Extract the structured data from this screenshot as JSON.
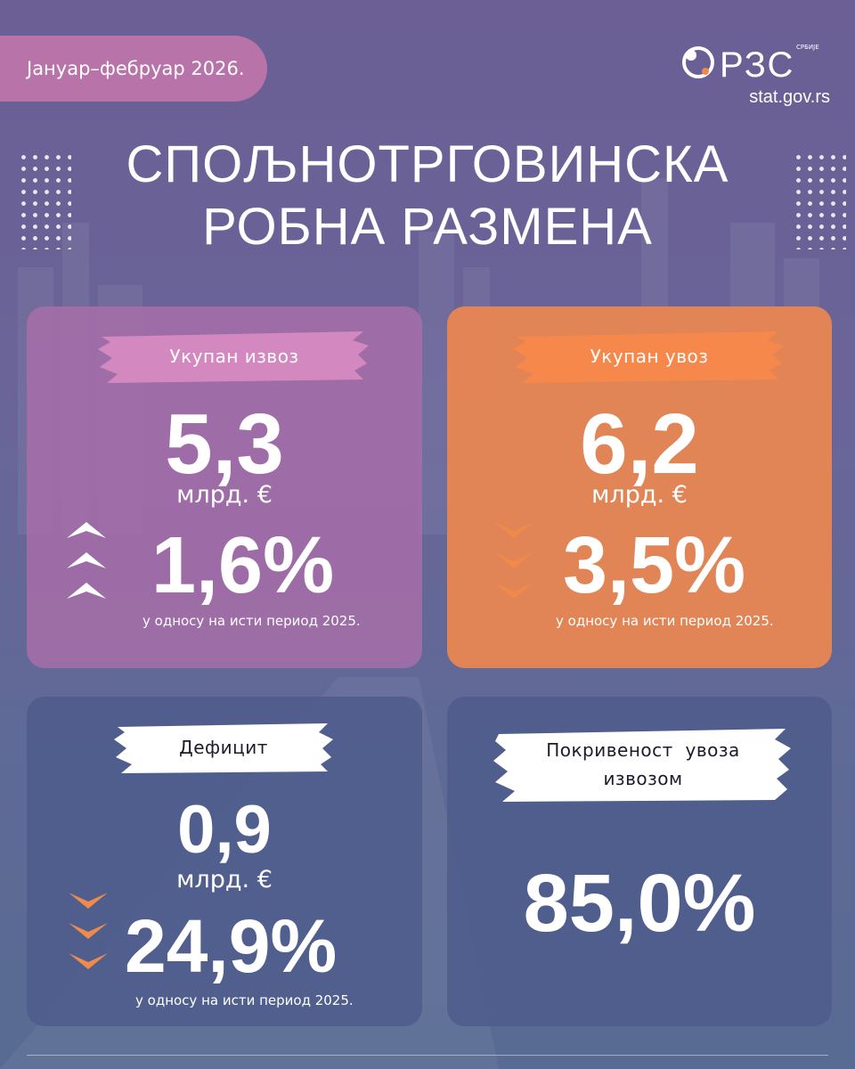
{
  "header": {
    "period": "Јануар–фебруар 2026.",
    "logo_text": "РЗС",
    "logo_small": "СРБИЈЕ",
    "url": "stat.gov.rs"
  },
  "title": {
    "line1": "СПОЉНОТРГОВИНСКА",
    "line2": "РОБНА РАЗМЕНА"
  },
  "cards": {
    "export": {
      "label": "Укупан извоз",
      "value": "5,3",
      "unit": "млрд. €",
      "change": "1,6%",
      "direction": "up",
      "note": "у односу на исти период 2025.",
      "color": "#aa6eaa"
    },
    "import": {
      "label": "Укупан увоз",
      "value": "6,2",
      "unit": "млрд. €",
      "change": "3,5%",
      "direction": "down",
      "note": "у односу на исти период 2025.",
      "color": "#ec8750"
    },
    "deficit": {
      "label": "Дефицит",
      "value": "0,9",
      "unit": "млрд. €",
      "change": "24,9%",
      "direction": "down",
      "note": "у односу на исти период 2025.",
      "color": "#4e5c8c"
    },
    "coverage": {
      "label_line1": "Покривеност  увоза",
      "label_line2": "извозом",
      "value": "85,0%",
      "color": "#4e5c8c"
    }
  },
  "colors": {
    "accent_pink": "#b874a8",
    "accent_orange": "#f08a4b",
    "background": "#6b6497"
  },
  "icons": [
    "chevron-up-icon",
    "chevron-down-icon"
  ]
}
